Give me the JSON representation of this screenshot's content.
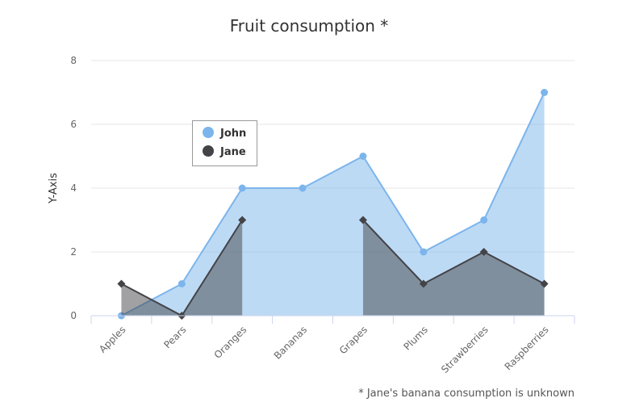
{
  "chart_data": {
    "type": "area",
    "title": "Fruit consumption *",
    "ylabel": "Y-Axis",
    "xlabel": "",
    "categories": [
      "Apples",
      "Pears",
      "Oranges",
      "Bananas",
      "Grapes",
      "Plums",
      "Strawberries",
      "Raspberries"
    ],
    "ylim": [
      0,
      8
    ],
    "yticks": [
      "0",
      "2",
      "4",
      "6",
      "8"
    ],
    "series": [
      {
        "name": "John",
        "values": [
          0,
          1,
          4,
          4,
          5,
          2,
          3,
          7
        ],
        "color": "#7cb5ec",
        "fill": "#7cb5ec",
        "marker": "circle"
      },
      {
        "name": "Jane",
        "values": [
          1,
          0,
          3,
          null,
          3,
          1,
          2,
          1
        ],
        "color": "#434348",
        "fill": "#434348",
        "marker": "diamond"
      }
    ],
    "grid": true,
    "legend_position": "top-left",
    "footnote": "* Jane's banana consumption is unknown"
  }
}
